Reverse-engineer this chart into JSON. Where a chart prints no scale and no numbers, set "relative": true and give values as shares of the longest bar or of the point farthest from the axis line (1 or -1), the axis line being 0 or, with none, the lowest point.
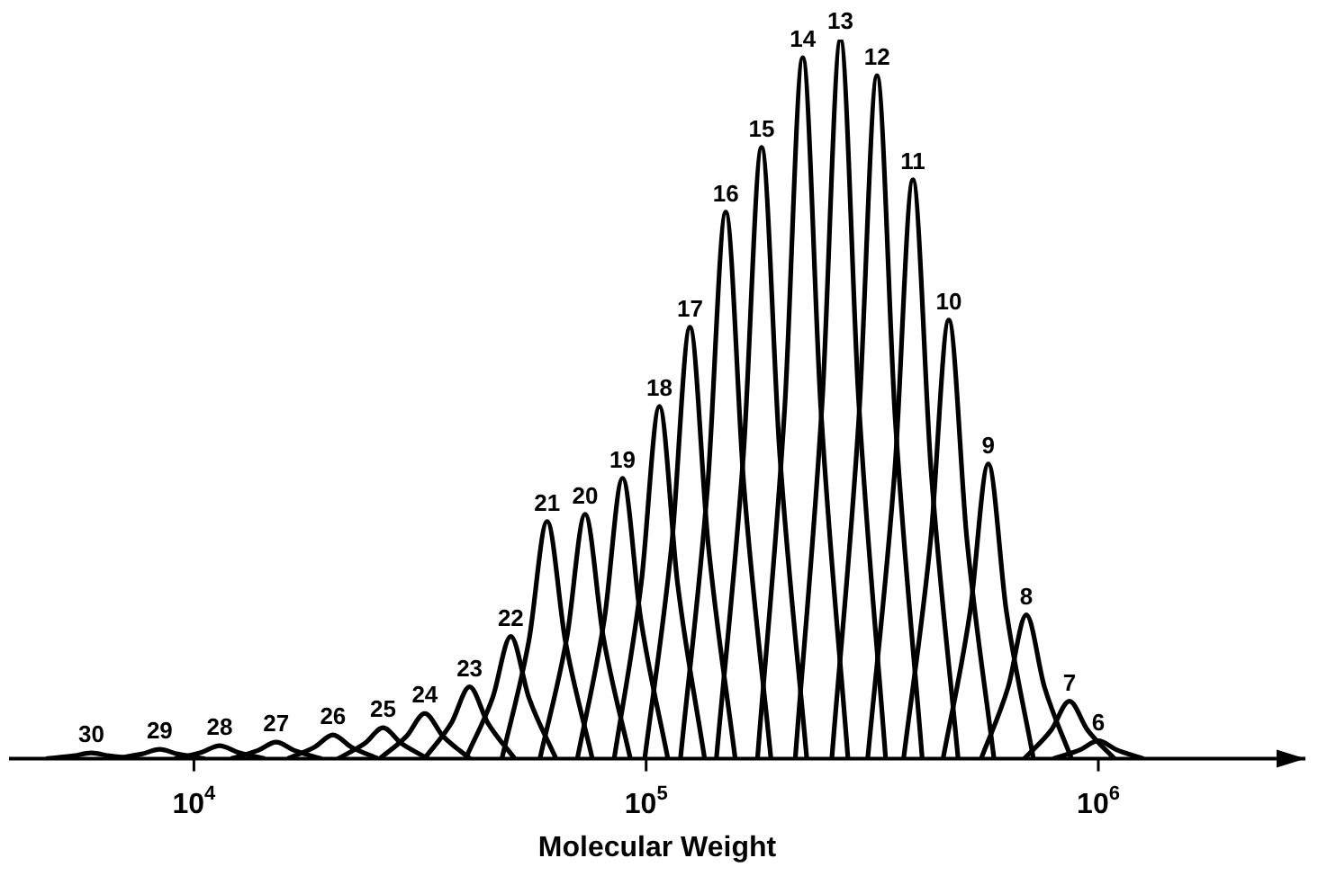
{
  "chart_data": {
    "type": "line",
    "relative": true,
    "xlabel": "Molecular Weight",
    "log": "x",
    "xlim": [
      3900,
      2870000
    ],
    "xticks": [
      {
        "value": 10000,
        "label": "10$^{4}$"
      },
      {
        "value": 100000,
        "label": "10$^{5}$"
      },
      {
        "value": 1000000,
        "label": "10$^{6}$"
      }
    ],
    "grid": false,
    "legend": false,
    "marker": "none",
    "series": [
      {
        "name": "30",
        "color": "#000000",
        "x": [
          4710,
          5410,
          5930,
          6500,
          7460
        ],
        "values": [
          0,
          0.004,
          0.008,
          0.004,
          0
        ]
      },
      {
        "name": "29",
        "color": "#000000",
        "x": [
          6670,
          7660,
          8400,
          9210,
          10570
        ],
        "values": [
          0,
          0.0065,
          0.013,
          0.0065,
          0
        ]
      },
      {
        "name": "28",
        "color": "#000000",
        "x": [
          9060,
          10400,
          11400,
          12500,
          14350
        ],
        "values": [
          0,
          0.009,
          0.018,
          0.009,
          0
        ]
      },
      {
        "name": "27",
        "color": "#000000",
        "x": [
          12070,
          13860,
          15200,
          16670,
          19140
        ],
        "values": [
          0,
          0.0115,
          0.023,
          0.0115,
          0
        ]
      },
      {
        "name": "26",
        "color": "#000000",
        "x": [
          16120,
          18510,
          20300,
          22260,
          25560
        ],
        "values": [
          0,
          0.0165,
          0.033,
          0.0165,
          0
        ]
      },
      {
        "name": "25",
        "color": "#000000",
        "x": [
          20810,
          23890,
          26200,
          28730,
          32980
        ],
        "values": [
          0,
          0.0215,
          0.043,
          0.0215,
          0
        ]
      },
      {
        "name": "24",
        "color": "#000000",
        "x": [
          25740,
          29550,
          32400,
          35530,
          40790
        ],
        "values": [
          0,
          0.0315,
          0.063,
          0.0315,
          0
        ]
      },
      {
        "name": "23",
        "color": "#000000",
        "x": [
          32330,
          37120,
          40700,
          44630,
          51240
        ],
        "values": [
          0,
          0.05,
          0.1,
          0.05,
          0
        ]
      },
      {
        "name": "22",
        "color": "#000000",
        "x": [
          39880,
          45780,
          50200,
          55040,
          63200
        ],
        "values": [
          0,
          0.085,
          0.17,
          0.085,
          0
        ]
      },
      {
        "name": "21",
        "color": "#000000",
        "x": [
          47980,
          55080,
          60400,
          66230,
          76040
        ],
        "values": [
          0,
          0.165,
          0.33,
          0.165,
          0
        ]
      },
      {
        "name": "20",
        "color": "#000000",
        "x": [
          58220,
          66850,
          73300,
          80370,
          92280
        ],
        "values": [
          0,
          0.17,
          0.34,
          0.17,
          0
        ]
      },
      {
        "name": "19",
        "color": "#000000",
        "x": [
          70460,
          80890,
          88700,
          97260,
          111700
        ],
        "values": [
          0,
          0.195,
          0.39,
          0.195,
          0
        ]
      },
      {
        "name": "18",
        "color": "#000000",
        "x": [
          84990,
          97580,
          107000,
          117300,
          134700
        ],
        "values": [
          0,
          0.245,
          0.49,
          0.245,
          0
        ]
      },
      {
        "name": "17",
        "color": "#000000",
        "x": [
          99290,
          114000,
          125000,
          137100,
          157400
        ],
        "values": [
          0,
          0.3,
          0.6,
          0.3,
          0
        ]
      },
      {
        "name": "16",
        "color": "#000000",
        "x": [
          119100,
          136800,
          150000,
          164500,
          188800
        ],
        "values": [
          0,
          0.38,
          0.76,
          0.38,
          0
        ]
      },
      {
        "name": "15",
        "color": "#000000",
        "x": [
          143000,
          164200,
          180000,
          197400,
          226600
        ],
        "values": [
          0,
          0.425,
          0.85,
          0.425,
          0
        ]
      },
      {
        "name": "14",
        "color": "#000000",
        "x": [
          176300,
          202500,
          222000,
          243400,
          279500
        ],
        "values": [
          0,
          0.4875,
          0.975,
          0.4875,
          0
        ]
      },
      {
        "name": "13",
        "color": "#000000",
        "x": [
          213700,
          245300,
          269000,
          295000,
          338600
        ],
        "values": [
          0,
          0.5,
          1,
          0.5,
          0
        ]
      },
      {
        "name": "12",
        "color": "#000000",
        "x": [
          257400,
          295500,
          324000,
          355300,
          407900
        ],
        "values": [
          0,
          0.475,
          0.95,
          0.475,
          0
        ]
      },
      {
        "name": "11",
        "color": "#000000",
        "x": [
          309000,
          354800,
          389000,
          426500,
          489700
        ],
        "values": [
          0,
          0.4025,
          0.805,
          0.4025,
          0
        ]
      },
      {
        "name": "10",
        "color": "#000000",
        "x": [
          371000,
          425900,
          467000,
          512100,
          587900
        ],
        "values": [
          0,
          0.305,
          0.61,
          0.305,
          0
        ]
      },
      {
        "name": "9",
        "color": "#000000",
        "x": [
          453600,
          520700,
          571000,
          626100,
          718800
        ],
        "values": [
          0,
          0.205,
          0.41,
          0.205,
          0
        ]
      },
      {
        "name": "8",
        "color": "#000000",
        "x": [
          550500,
          632000,
          693000,
          759900,
          872400
        ],
        "values": [
          0,
          0.1,
          0.2,
          0.1,
          0
        ]
      },
      {
        "name": "7",
        "color": "#000000",
        "x": [
          685500,
          787000,
          863000,
          946300,
          1086000
        ],
        "values": [
          0,
          0.04,
          0.08,
          0.04,
          0
        ]
      },
      {
        "name": "6",
        "color": "#000000",
        "x": [
          794300,
          912000,
          1000000,
          1096500,
          1258900
        ],
        "values": [
          0,
          0.0125,
          0.025,
          0.0125,
          0
        ]
      }
    ]
  }
}
